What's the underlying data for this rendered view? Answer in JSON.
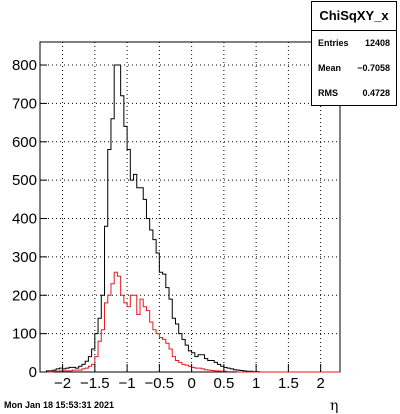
{
  "stats": {
    "title": "ChiSqXY_x",
    "rows": [
      {
        "label": "Entries",
        "value": "12408"
      },
      {
        "label": "Mean",
        "value": "−0.7058"
      },
      {
        "label": "RMS",
        "value": "0.4728"
      }
    ]
  },
  "footer": {
    "datestamp": "Mon Jan 18 15:53:31 2021",
    "xlabel": "η"
  },
  "chart_data": {
    "type": "histogram",
    "title": "",
    "xlabel": "η",
    "ylabel": "",
    "xlim": [
      -2.35,
      2.3
    ],
    "ylim": [
      0,
      860
    ],
    "grid": true,
    "x_ticks": [
      -2,
      -1.5,
      -1,
      -0.5,
      0,
      0.5,
      1,
      1.5,
      2
    ],
    "x_tick_labels": [
      "−2",
      "−1.5",
      "−1",
      "−0.5",
      "0",
      "0.5",
      "1",
      "1.5",
      "2"
    ],
    "y_ticks": [
      0,
      100,
      200,
      300,
      400,
      500,
      600,
      700,
      800
    ],
    "y_tick_labels": [
      "0",
      "100",
      "200",
      "300",
      "400",
      "500",
      "600",
      "700",
      "800"
    ],
    "bin_width": 0.05,
    "bin_edges_start": -2.35,
    "series": [
      {
        "color": "#000000",
        "values": [
          0,
          0,
          3,
          3,
          5,
          8,
          10,
          8,
          10,
          12,
          12,
          10,
          15,
          20,
          28,
          40,
          60,
          100,
          140,
          200,
          380,
          580,
          660,
          800,
          800,
          720,
          640,
          580,
          500,
          515,
          480,
          480,
          450,
          400,
          370,
          345,
          310,
          260,
          255,
          220,
          190,
          140,
          125,
          100,
          85,
          70,
          55,
          50,
          40,
          45,
          45,
          35,
          30,
          30,
          25,
          20,
          15,
          12,
          10,
          8,
          6,
          5,
          4,
          3,
          2,
          2,
          1,
          1,
          0,
          0,
          0,
          0,
          0,
          0,
          0,
          0,
          0,
          0,
          0,
          0,
          0,
          0,
          0,
          0,
          0,
          0,
          0,
          0,
          0,
          0,
          0,
          0,
          0
        ]
      },
      {
        "color": "#e8191e",
        "values": [
          0,
          0,
          0,
          0,
          2,
          2,
          3,
          3,
          3,
          3,
          5,
          5,
          5,
          8,
          10,
          15,
          20,
          40,
          80,
          110,
          180,
          200,
          230,
          260,
          250,
          200,
          180,
          170,
          200,
          200,
          150,
          190,
          170,
          160,
          130,
          110,
          100,
          90,
          85,
          75,
          60,
          40,
          30,
          25,
          20,
          18,
          15,
          12,
          10,
          10,
          8,
          6,
          5,
          4,
          3,
          3,
          2,
          2,
          1,
          1,
          1,
          0,
          0,
          0,
          0,
          0,
          0,
          0,
          0,
          0,
          0,
          0,
          0,
          0,
          0,
          0,
          0,
          0,
          0,
          0,
          0,
          0,
          0,
          0,
          0,
          0,
          0,
          0,
          0,
          0,
          0,
          0,
          0
        ]
      }
    ]
  }
}
